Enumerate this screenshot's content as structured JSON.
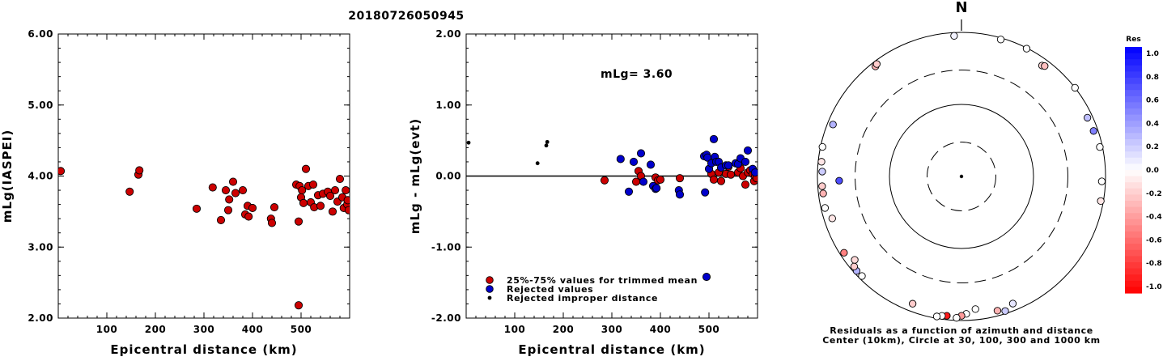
{
  "title": "20180726050945",
  "chart_data": [
    {
      "type": "scatter",
      "xlabel": "Epicentral distance (km)",
      "ylabel": "mLg(IASPEI)",
      "xlim": [
        0,
        600
      ],
      "ylim": [
        2.0,
        6.0
      ],
      "xticks": [
        "100",
        "200",
        "300",
        "400",
        "500"
      ],
      "yticks": [
        "2.00",
        "3.00",
        "4.00",
        "5.00",
        "6.00"
      ],
      "series": [
        {
          "color": "#cc0000",
          "points": [
            [
              5,
              4.07
            ],
            [
              147,
              3.78
            ],
            [
              165,
              4.02
            ],
            [
              167,
              4.08
            ],
            [
              285,
              3.54
            ],
            [
              318,
              3.84
            ],
            [
              335,
              3.38
            ],
            [
              345,
              3.8
            ],
            [
              350,
              3.52
            ],
            [
              352,
              3.67
            ],
            [
              360,
              3.92
            ],
            [
              365,
              3.76
            ],
            [
              380,
              3.8
            ],
            [
              385,
              3.46
            ],
            [
              390,
              3.58
            ],
            [
              392,
              3.43
            ],
            [
              400,
              3.55
            ],
            [
              438,
              3.4
            ],
            [
              440,
              3.34
            ],
            [
              445,
              3.56
            ],
            [
              490,
              3.88
            ],
            [
              495,
              3.36
            ],
            [
              497,
              3.86
            ],
            [
              500,
              3.7
            ],
            [
              502,
              3.8
            ],
            [
              505,
              3.62
            ],
            [
              510,
              4.1
            ],
            [
              515,
              3.86
            ],
            [
              520,
              3.63
            ],
            [
              525,
              3.88
            ],
            [
              527,
              3.56
            ],
            [
              535,
              3.73
            ],
            [
              540,
              3.58
            ],
            [
              545,
              3.75
            ],
            [
              555,
              3.78
            ],
            [
              560,
              3.72
            ],
            [
              565,
              3.5
            ],
            [
              570,
              3.8
            ],
            [
              575,
              3.64
            ],
            [
              580,
              3.96
            ],
            [
              585,
              3.7
            ],
            [
              588,
              3.55
            ],
            [
              592,
              3.8
            ],
            [
              595,
              3.6
            ],
            [
              596,
              3.66
            ],
            [
              598,
              3.52
            ],
            [
              495,
              2.18
            ]
          ]
        }
      ]
    },
    {
      "type": "scatter",
      "xlabel": "Epicentral distance (km)",
      "ylabel": "mLg - mLg(evt)",
      "xlim": [
        0,
        600
      ],
      "ylim": [
        -2.0,
        2.0
      ],
      "xticks": [
        "100",
        "200",
        "300",
        "400",
        "500"
      ],
      "yticks": [
        "-2.00",
        "-1.00",
        "0.00",
        "1.00",
        "2.00"
      ],
      "annotation": "mLg= 3.60",
      "legend": [
        {
          "label": "25%-75% values for trimmed mean",
          "color": "#cc0000"
        },
        {
          "label": "Rejected values",
          "color": "#0000cc"
        },
        {
          "label": "Rejected improper distance",
          "color": "#000000"
        }
      ],
      "series": [
        {
          "name": "25%-75% values for trimmed mean",
          "color": "#cc0000",
          "points": [
            [
              285,
              -0.06
            ],
            [
              350,
              -0.08
            ],
            [
              355,
              0.07
            ],
            [
              360,
              0.0
            ],
            [
              390,
              -0.02
            ],
            [
              395,
              -0.06
            ],
            [
              400,
              -0.05
            ],
            [
              440,
              -0.03
            ],
            [
              505,
              0.03
            ],
            [
              510,
              -0.05
            ],
            [
              520,
              0.05
            ],
            [
              525,
              -0.07
            ],
            [
              535,
              0.03
            ],
            [
              540,
              0.13
            ],
            [
              545,
              0.02
            ],
            [
              560,
              0.05
            ],
            [
              565,
              0.11
            ],
            [
              570,
              0.0
            ],
            [
              575,
              -0.12
            ],
            [
              580,
              0.05
            ],
            [
              585,
              0.08
            ],
            [
              590,
              0.03
            ],
            [
              593,
              -0.07
            ],
            [
              595,
              0.0
            ],
            [
              598,
              -0.03
            ]
          ]
        },
        {
          "name": "Rejected values",
          "color": "#0000cc",
          "points": [
            [
              318,
              0.24
            ],
            [
              335,
              -0.22
            ],
            [
              345,
              0.2
            ],
            [
              360,
              0.32
            ],
            [
              365,
              -0.08
            ],
            [
              380,
              0.16
            ],
            [
              385,
              -0.14
            ],
            [
              390,
              -0.18
            ],
            [
              392,
              -0.17
            ],
            [
              438,
              -0.2
            ],
            [
              440,
              -0.26
            ],
            [
              490,
              0.28
            ],
            [
              492,
              -0.23
            ],
            [
              495,
              0.3
            ],
            [
              497,
              0.26
            ],
            [
              500,
              0.1
            ],
            [
              505,
              0.18
            ],
            [
              510,
              0.52
            ],
            [
              512,
              0.27
            ],
            [
              515,
              0.2
            ],
            [
              520,
              0.2
            ],
            [
              525,
              0.12
            ],
            [
              535,
              0.15
            ],
            [
              540,
              0.15
            ],
            [
              555,
              0.18
            ],
            [
              560,
              0.17
            ],
            [
              565,
              0.25
            ],
            [
              575,
              0.2
            ],
            [
              580,
              0.36
            ],
            [
              590,
              0.1
            ],
            [
              595,
              0.05
            ],
            [
              495,
              -1.42
            ]
          ]
        },
        {
          "name": "Rejected improper distance",
          "color": "#000000",
          "points": [
            [
              5,
              0.47
            ],
            [
              147,
              0.18
            ],
            [
              165,
              0.43
            ],
            [
              167,
              0.48
            ]
          ]
        }
      ]
    },
    {
      "type": "scatter",
      "subtype": "polar",
      "north_label": "N",
      "caption_line1": "Residuals as a function of azimuth and distance",
      "caption_line2": "Center (10km), Circle at 30, 100, 300 and 1000 km",
      "colorbar_title": "Res",
      "colorbar_ticks": [
        "1.0",
        "0.8",
        "0.6",
        "0.4",
        "0.2",
        "0.0",
        "-0.2",
        "-0.4",
        "-0.6",
        "-0.8",
        "-1.0"
      ],
      "radial_km": [
        10,
        30,
        100,
        300,
        1000
      ],
      "stations": [
        {
          "az": 357,
          "dist": 900,
          "res": 0.05
        },
        {
          "az": 16,
          "dist": 950,
          "res": 0.0
        },
        {
          "az": 27,
          "dist": 980,
          "res": 0.0
        },
        {
          "az": 36,
          "dist": 800,
          "res": -0.15
        },
        {
          "az": 37,
          "dist": 830,
          "res": -0.25
        },
        {
          "az": 52,
          "dist": 1000,
          "res": 0.0
        },
        {
          "az": 65,
          "dist": 850,
          "res": 0.25
        },
        {
          "az": 71,
          "dist": 870,
          "res": 0.5
        },
        {
          "az": 78,
          "dist": 920,
          "res": 0.0
        },
        {
          "az": 92,
          "dist": 890,
          "res": 0.0
        },
        {
          "az": 100,
          "dist": 920,
          "res": -0.1
        },
        {
          "az": 158,
          "dist": 800,
          "res": 0.1
        },
        {
          "az": 165,
          "dist": 850,
          "res": -0.3
        },
        {
          "az": 162,
          "dist": 920,
          "res": 0.2
        },
        {
          "az": 174,
          "dist": 710,
          "res": 0.0
        },
        {
          "az": 178,
          "dist": 810,
          "res": 0.0
        },
        {
          "az": 180,
          "dist": 860,
          "res": -0.4
        },
        {
          "az": 182,
          "dist": 920,
          "res": 0.0
        },
        {
          "az": 186,
          "dist": 880,
          "res": -0.9
        },
        {
          "az": 188,
          "dist": 900,
          "res": 0.0
        },
        {
          "az": 190,
          "dist": 940,
          "res": 0.0
        },
        {
          "az": 201,
          "dist": 780,
          "res": -0.2
        },
        {
          "az": 225,
          "dist": 900,
          "res": 0.0
        },
        {
          "az": 228,
          "dist": 910,
          "res": 0.3
        },
        {
          "az": 230,
          "dist": 880,
          "res": -0.2
        },
        {
          "az": 232,
          "dist": 760,
          "res": -0.15
        },
        {
          "az": 237,
          "dist": 880,
          "res": -0.5
        },
        {
          "az": 252,
          "dist": 770,
          "res": -0.1
        },
        {
          "az": 257,
          "dist": 880,
          "res": 0.0
        },
        {
          "az": 263,
          "dist": 860,
          "res": -0.3
        },
        {
          "az": 266,
          "dist": 870,
          "res": -0.2
        },
        {
          "az": 268,
          "dist": 500,
          "res": 0.7
        },
        {
          "az": 272,
          "dist": 860,
          "res": 0.2
        },
        {
          "az": 276,
          "dist": 900,
          "res": -0.1
        },
        {
          "az": 282,
          "dist": 940,
          "res": 0.0
        },
        {
          "az": 292,
          "dist": 840,
          "res": 0.3
        },
        {
          "az": 322,
          "dist": 870,
          "res": -0.3
        },
        {
          "az": 323,
          "dist": 900,
          "res": -0.2
        }
      ]
    }
  ]
}
